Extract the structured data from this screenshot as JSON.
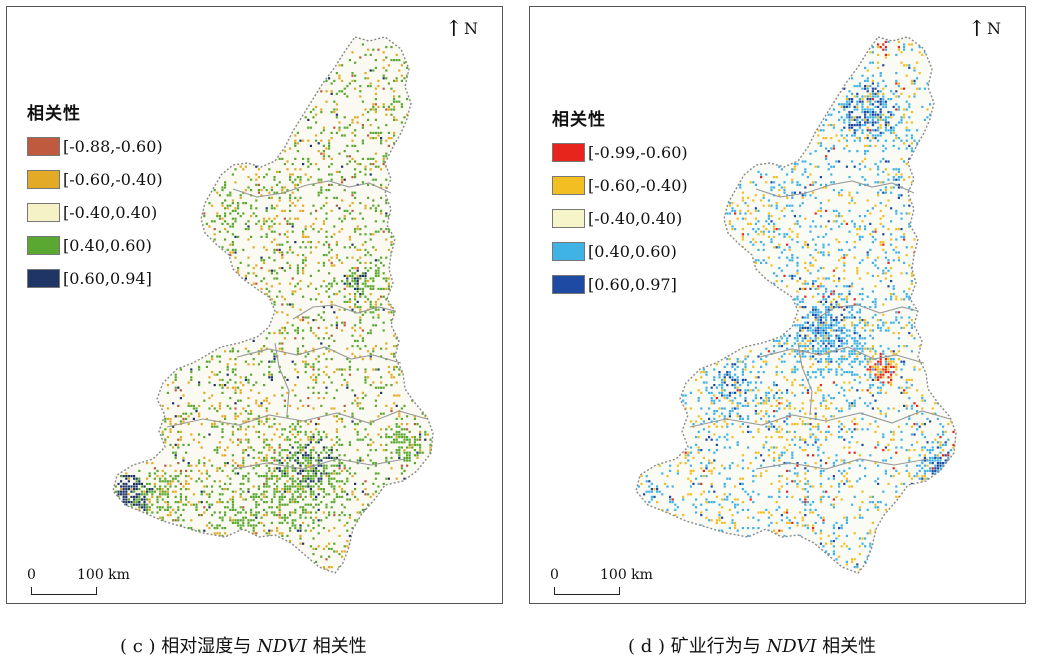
{
  "panels": [
    {
      "id": "c",
      "north_label": "N",
      "legend": {
        "title": "相关性",
        "items": [
          {
            "label": "[-0.88,-0.60)",
            "color": "#c05a3e"
          },
          {
            "label": "[-0.60,-0.40)",
            "color": "#e3aa27"
          },
          {
            "label": "[-0.40,0.40)",
            "color": "#f5f3c6"
          },
          {
            "label": "[0.40,0.60)",
            "color": "#5aa832"
          },
          {
            "label": "[0.60,0.94]",
            "color": "#1e3566"
          }
        ]
      },
      "scalebar": {
        "zero": "0",
        "distance": "100 km"
      },
      "caption": {
        "prefix": "( c )  相对湿度与 ",
        "variable": "NDVI",
        "suffix": " 相关性"
      }
    },
    {
      "id": "d",
      "north_label": "N",
      "legend": {
        "title": "相关性",
        "items": [
          {
            "label": "[-0.99,-0.60)",
            "color": "#e8251d"
          },
          {
            "label": "[-0.60,-0.40)",
            "color": "#f2be22"
          },
          {
            "label": "[-0.40,0.40)",
            "color": "#f6f4c9"
          },
          {
            "label": "[0.40,0.60)",
            "color": "#3fb2e6"
          },
          {
            "label": "[0.60,0.97]",
            "color": "#1f4aa3"
          }
        ]
      },
      "scalebar": {
        "zero": "0",
        "distance": "100 km"
      },
      "caption": {
        "prefix": "( d )  矿业行为与 ",
        "variable": "NDVI",
        "suffix": " 相关性"
      }
    }
  ]
}
